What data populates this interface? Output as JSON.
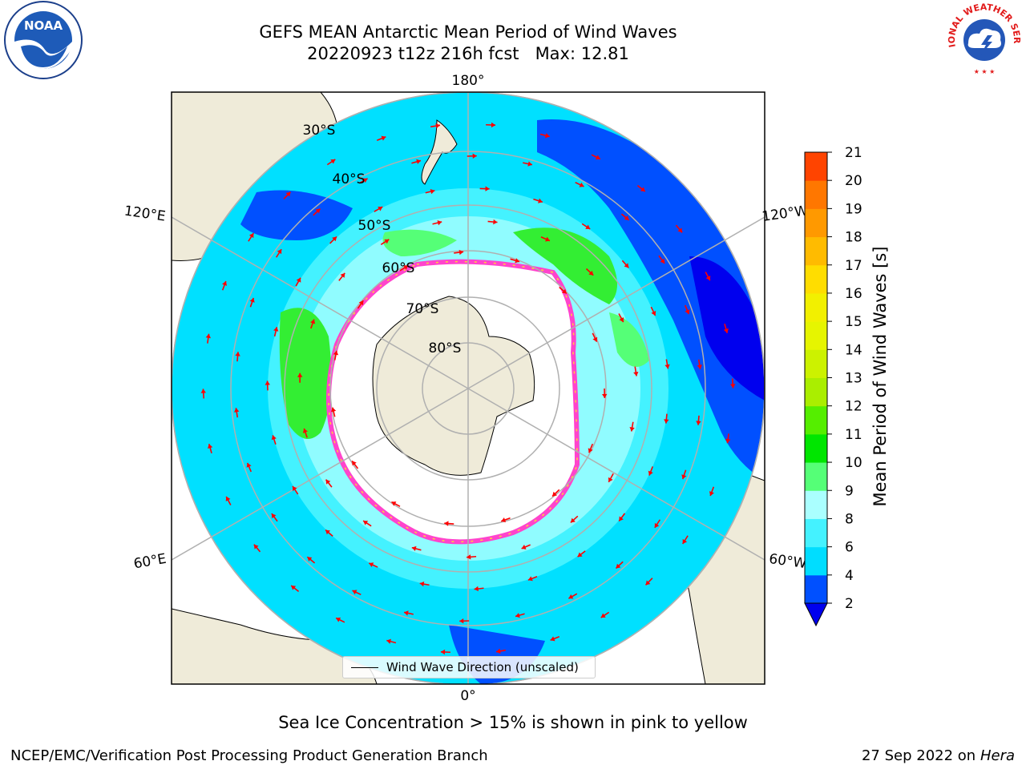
{
  "header": {
    "title_line1": "GEFS MEAN Antarctic Mean Period of Wind Waves",
    "title_line2": "20220923 t12z 216h fcst   Max: 12.81"
  },
  "logos": {
    "left": "NOAA",
    "right_arc": "NATIONAL WEATHER SERVICE"
  },
  "map": {
    "projection": "south-polar-stereographic",
    "longitude_labels": [
      "180°",
      "120°E",
      "120°W",
      "60°E",
      "60°W",
      "0°"
    ],
    "latitude_labels": [
      "30°S",
      "40°S",
      "50°S",
      "60°S",
      "70°S",
      "80°S"
    ],
    "land_color": "#efebd9",
    "coastline_color": "#000000",
    "grid_color": "#b0b0b0",
    "arrow_color": "#ff0000",
    "sea_ice_colors": [
      "#ff44cc",
      "#ffd23a"
    ]
  },
  "legend": {
    "label": "Wind Wave Direction (unscaled)"
  },
  "colorbar": {
    "title": "Mean Period of Wind Waves [s]",
    "ticks": [
      "2",
      "4",
      "6",
      "8",
      "9",
      "10",
      "11",
      "12",
      "13",
      "14",
      "15",
      "16",
      "17",
      "18",
      "19",
      "20",
      "21"
    ],
    "colors": [
      "#0050ff",
      "#00ddff",
      "#44f2ff",
      "#aaffff",
      "#55ff77",
      "#00e600",
      "#55ee00",
      "#aaee00",
      "#ccf200",
      "#e6f500",
      "#f2f000",
      "#ffdd00",
      "#ffbb00",
      "#ff9900",
      "#ff7700",
      "#ff4400"
    ],
    "extend_color": "#0000ee"
  },
  "caption": "Sea Ice Concentration > 15% is shown in pink to yellow",
  "footer": {
    "left": "NCEP/EMC/Verification Post Processing Product Generation Branch",
    "right_date": "27 Sep 2022 on",
    "right_host": "Hera"
  }
}
